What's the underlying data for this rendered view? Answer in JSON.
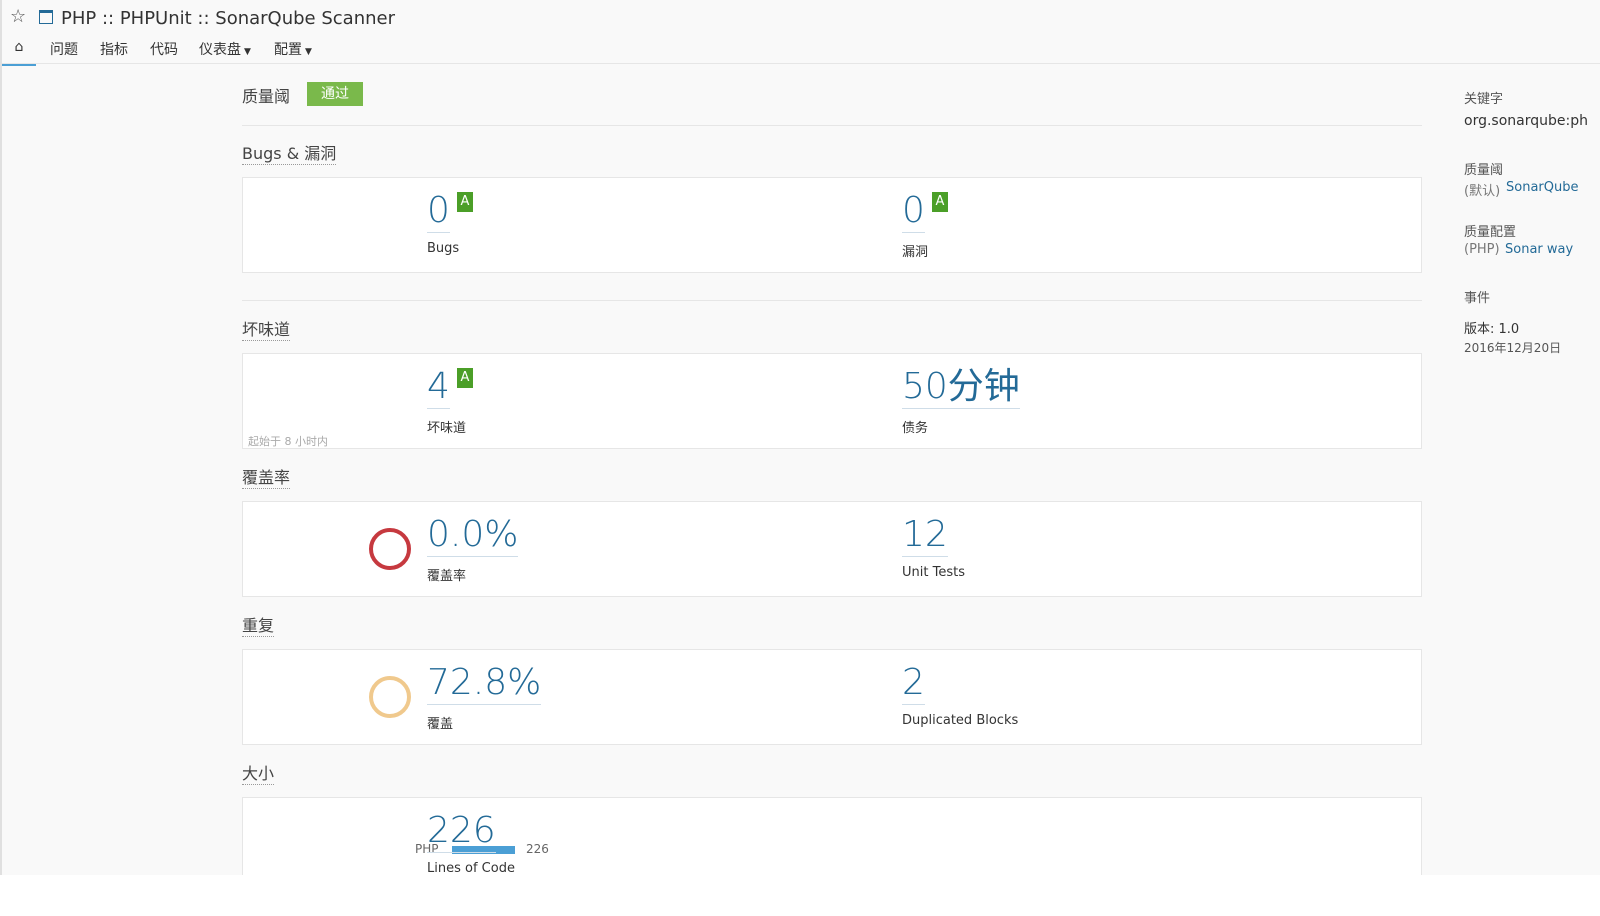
{
  "header": {
    "title": "PHP :: PHPUnit :: SonarQube Scanner",
    "nav": [
      "问题",
      "指标",
      "代码",
      "仪表盘",
      "配置"
    ]
  },
  "quality_gate": {
    "label": "质量阈",
    "status": "通过"
  },
  "sections": [
    {
      "title": "Bugs & 漏洞",
      "metrics": [
        {
          "value": "0",
          "label": "Bugs",
          "rating": "A"
        },
        {
          "value": "0",
          "label": "漏洞",
          "rating": "A"
        }
      ]
    },
    {
      "title": "坏味道",
      "note": "起始于 8 小时内",
      "metrics": [
        {
          "value": "4",
          "label": "坏味道",
          "rating": "A"
        },
        {
          "value": "50分钟",
          "label": "债务"
        }
      ]
    },
    {
      "title": "覆盖率",
      "metrics": [
        {
          "value": "0.0%",
          "label": "覆盖率"
        },
        {
          "value": "12",
          "label": "Unit Tests"
        }
      ]
    },
    {
      "title": "重复",
      "metrics": [
        {
          "value": "72.8%",
          "label": "覆盖"
        },
        {
          "value": "2",
          "label": "Duplicated Blocks"
        }
      ]
    },
    {
      "title": "大小",
      "languages": [
        {
          "name": "PHP",
          "value": 226
        }
      ],
      "metrics": [
        {
          "value": "226",
          "label": "Lines of Code"
        }
      ]
    }
  ],
  "sidebar": {
    "key_label": "关键字",
    "key": "org.sonarqube:ph",
    "gate_label": "质量阈",
    "gate_prefix": "(默认)",
    "gate_link": "SonarQube",
    "profile_label": "质量配置",
    "profile_prefix": "(PHP)",
    "profile_link": "Sonar way",
    "events_label": "事件",
    "event_title": "版本: 1.0",
    "event_date": "2016年12月20日"
  }
}
